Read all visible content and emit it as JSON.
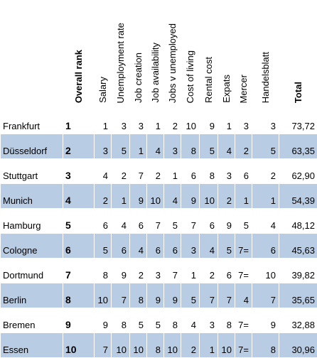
{
  "headers": {
    "overall_rank": "Overall rank",
    "salary": "Salary",
    "unemployment_rate": "Unemployment rate",
    "job_creation": "Job creation",
    "job_availability": "Job availability",
    "jobs_v_unemployed": "Jobs v unemployed",
    "cost_of_living": "Cost of living",
    "rental_cost": "Rental cost",
    "expats": "Expats",
    "mercer": "Mercer",
    "handelsblatt": "Handelsblatt",
    "total": "Total"
  },
  "rows": [
    {
      "city": "Frankfurt",
      "rank": "1",
      "salary": "1",
      "unemployment_rate": "3",
      "job_creation": "3",
      "job_availability": "1",
      "jobs_v_unemployed": "2",
      "cost_of_living": "10",
      "rental_cost": "9",
      "expats": "1",
      "mercer": "3",
      "handelsblatt": "3",
      "total": "73,72"
    },
    {
      "city": "Düsseldorf",
      "rank": "2",
      "salary": "3",
      "unemployment_rate": "5",
      "job_creation": "1",
      "job_availability": "4",
      "jobs_v_unemployed": "3",
      "cost_of_living": "8",
      "rental_cost": "5",
      "expats": "4",
      "mercer": "2",
      "handelsblatt": "5",
      "total": "63,35"
    },
    {
      "city": "Stuttgart",
      "rank": "3",
      "salary": "4",
      "unemployment_rate": "2",
      "job_creation": "7",
      "job_availability": "2",
      "jobs_v_unemployed": "1",
      "cost_of_living": "6",
      "rental_cost": "8",
      "expats": "3",
      "mercer": "6",
      "handelsblatt": "2",
      "total": "62,90"
    },
    {
      "city": "Munich",
      "rank": "4",
      "salary": "2",
      "unemployment_rate": "1",
      "job_creation": "9",
      "job_availability": "10",
      "jobs_v_unemployed": "4",
      "cost_of_living": "9",
      "rental_cost": "10",
      "expats": "2",
      "mercer": "1",
      "handelsblatt": "1",
      "total": "54,39"
    },
    {
      "city": "Hamburg",
      "rank": "5",
      "salary": "6",
      "unemployment_rate": "4",
      "job_creation": "6",
      "job_availability": "7",
      "jobs_v_unemployed": "5",
      "cost_of_living": "7",
      "rental_cost": "6",
      "expats": "9",
      "mercer": "5",
      "handelsblatt": "4",
      "total": "48,12"
    },
    {
      "city": "Cologne",
      "rank": "6",
      "salary": "5",
      "unemployment_rate": "6",
      "job_creation": "4",
      "job_availability": "6",
      "jobs_v_unemployed": "6",
      "cost_of_living": "3",
      "rental_cost": "4",
      "expats": "5",
      "mercer": "7=",
      "handelsblatt": "6",
      "total": "45,63"
    },
    {
      "city": "Dortmund",
      "rank": "7",
      "salary": "8",
      "unemployment_rate": "9",
      "job_creation": "2",
      "job_availability": "3",
      "jobs_v_unemployed": "7",
      "cost_of_living": "1",
      "rental_cost": "2",
      "expats": "6",
      "mercer": "7=",
      "handelsblatt": "10",
      "total": "39,82"
    },
    {
      "city": "Berlin",
      "rank": "8",
      "salary": "10",
      "unemployment_rate": "7",
      "job_creation": "8",
      "job_availability": "9",
      "jobs_v_unemployed": "9",
      "cost_of_living": "5",
      "rental_cost": "7",
      "expats": "7",
      "mercer": "4",
      "handelsblatt": "7",
      "total": "35,65"
    },
    {
      "city": "Bremen",
      "rank": "9",
      "salary": "9",
      "unemployment_rate": "8",
      "job_creation": "5",
      "job_availability": "5",
      "jobs_v_unemployed": "8",
      "cost_of_living": "4",
      "rental_cost": "3",
      "expats": "8",
      "mercer": "7=",
      "handelsblatt": "9",
      "total": "32,88"
    },
    {
      "city": "Essen",
      "rank": "10",
      "salary": "7",
      "unemployment_rate": "10",
      "job_creation": "10",
      "job_availability": "8",
      "jobs_v_unemployed": "10",
      "cost_of_living": "2",
      "rental_cost": "1",
      "expats": "10",
      "mercer": "7=",
      "handelsblatt": "8",
      "total": "30,96"
    }
  ],
  "colors": {
    "shaded_row": "#b8cce4",
    "plain_row": "#ffffff"
  }
}
